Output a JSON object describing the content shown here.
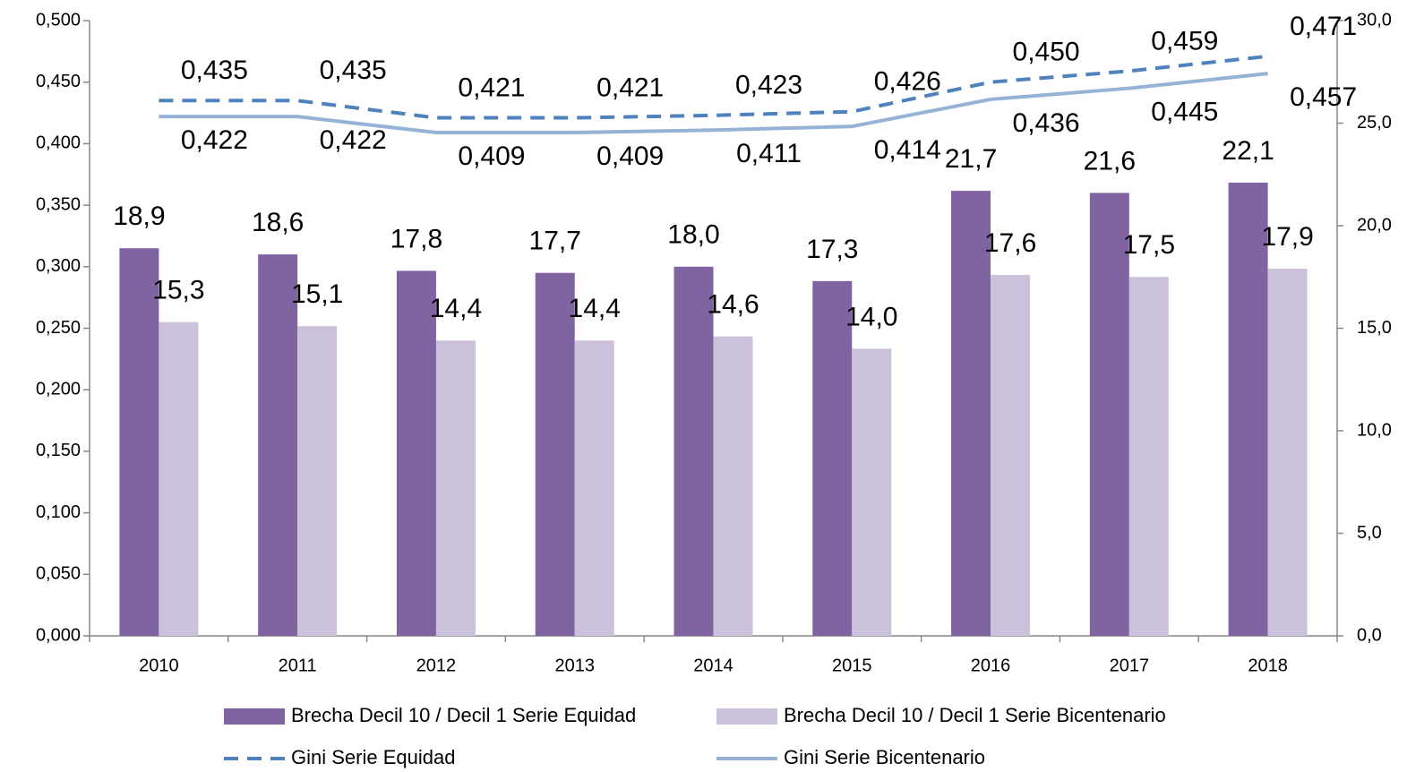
{
  "chart_data": {
    "type": "bar",
    "categories": [
      "2010",
      "2011",
      "2012",
      "2013",
      "2014",
      "2015",
      "2016",
      "2017",
      "2018"
    ],
    "series": [
      {
        "name": "Brecha Decil 10 / Decil 1 Serie Equidad",
        "type": "bar",
        "axis": "y2",
        "color": "#8064a2",
        "values": [
          18.9,
          18.6,
          17.8,
          17.7,
          18.0,
          17.3,
          21.7,
          21.6,
          22.1
        ],
        "value_labels": [
          "18,9",
          "18,6",
          "17,8",
          "17,7",
          "18,0",
          "17,3",
          "21,7",
          "21,6",
          "22,1"
        ]
      },
      {
        "name": "Brecha Decil 10 / Decil 1 Serie Bicentenario",
        "type": "bar",
        "axis": "y2",
        "color": "#ccc1da",
        "values": [
          15.3,
          15.1,
          14.4,
          14.4,
          14.6,
          14.0,
          17.6,
          17.5,
          17.9
        ],
        "value_labels": [
          "15,3",
          "15,1",
          "14,4",
          "14,4",
          "14,6",
          "14,0",
          "17,6",
          "17,5",
          "17,9"
        ]
      },
      {
        "name": "Gini Serie Equidad",
        "type": "line",
        "dash": true,
        "color": "#4f81bd",
        "values": [
          0.435,
          0.435,
          0.421,
          0.421,
          0.423,
          0.426,
          0.45,
          0.459,
          0.471
        ],
        "value_labels": [
          "0,435",
          "0,435",
          "0,421",
          "0,421",
          "0,423",
          "0,426",
          "0,450",
          "0,459",
          "0,471"
        ]
      },
      {
        "name": "Gini Serie Bicentenario",
        "type": "line",
        "dash": false,
        "color": "#95b3d7",
        "values": [
          0.422,
          0.422,
          0.409,
          0.409,
          0.411,
          0.414,
          0.436,
          0.445,
          0.457
        ],
        "value_labels": [
          "0,422",
          "0,422",
          "0,409",
          "0,409",
          "0,411",
          "0,414",
          "0,436",
          "0,445",
          "0,457"
        ]
      }
    ],
    "ylim": [
      0,
      0.5
    ],
    "yticks": [
      {
        "value": 0,
        "label": "0,000"
      },
      {
        "value": 0.05,
        "label": "0,050"
      },
      {
        "value": 0.1,
        "label": "0,100"
      },
      {
        "value": 0.15,
        "label": "0,150"
      },
      {
        "value": 0.2,
        "label": "0,200"
      },
      {
        "value": 0.25,
        "label": "0,250"
      },
      {
        "value": 0.3,
        "label": "0,300"
      },
      {
        "value": 0.35,
        "label": "0,350"
      },
      {
        "value": 0.4,
        "label": "0,400"
      },
      {
        "value": 0.45,
        "label": "0,450"
      },
      {
        "value": 0.5,
        "label": "0,500"
      }
    ],
    "y2lim": [
      0,
      30
    ],
    "y2ticks": [
      {
        "value": 0,
        "label": "0,0"
      },
      {
        "value": 5,
        "label": "5,0"
      },
      {
        "value": 10,
        "label": "10,0"
      },
      {
        "value": 15,
        "label": "15,0"
      },
      {
        "value": 20,
        "label": "20,0"
      },
      {
        "value": 25,
        "label": "25,0"
      },
      {
        "value": 30,
        "label": "30,0"
      }
    ],
    "grid": false,
    "legend": "bottom"
  }
}
